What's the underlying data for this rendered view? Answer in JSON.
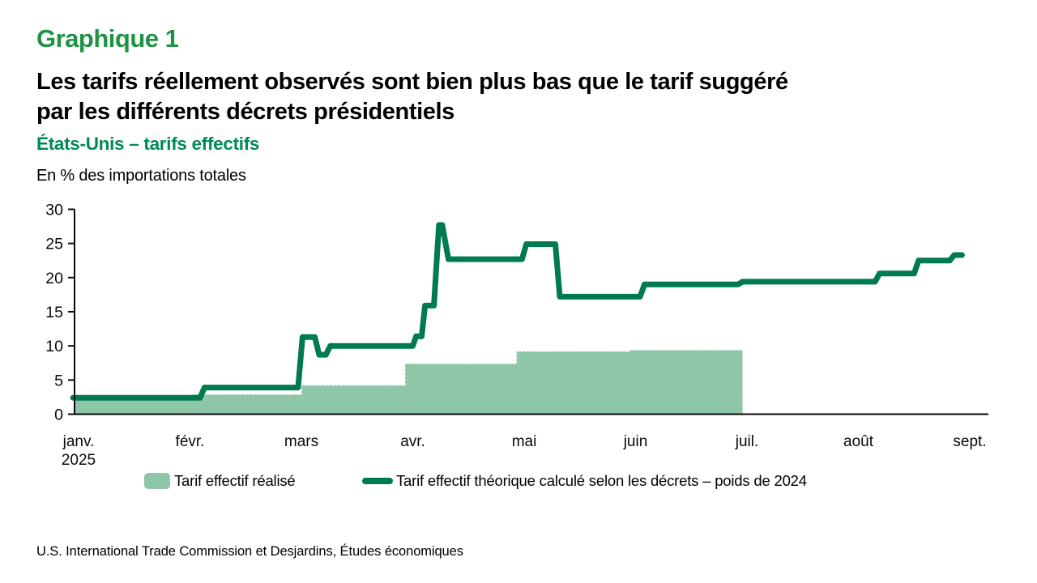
{
  "page": {
    "kicker": "Graphique 1",
    "title_line1": "Les tarifs réellement observés sont bien plus bas que le tarif suggéré",
    "title_line2": "par les différents décrets présidentiels",
    "subtitle": "États-Unis – tarifs effectifs",
    "unit_label": "En % des importations totales",
    "source": "U.S. International Trade Commission et Desjardins, Études économiques"
  },
  "colors": {
    "kicker_green": "#1f9245",
    "subtitle_green": "#008a50",
    "line_green": "#007a4f",
    "area_green": "#8ec6a8",
    "area_edge_dash": "#f2f7f2",
    "axis_black": "#0a0a0a"
  },
  "legend": {
    "items": [
      {
        "type": "area",
        "label": "Tarif effectif réalisé"
      },
      {
        "type": "line",
        "label": "Tarif effectif théorique calculé selon les décrets – poids de 2024"
      }
    ]
  },
  "chart_data": {
    "type": "area",
    "subtype": "step area + step line, x in months (0 = janv. 2025, 8 = sept. 2025)",
    "title": "États-Unis – tarifs effectifs",
    "ylabel": "En % des importations totales",
    "ylim": [
      0,
      30
    ],
    "yticks": [
      0,
      5,
      10,
      15,
      20,
      25,
      30
    ],
    "x_tick_labels": [
      "janv.",
      "févr.",
      "mars",
      "avr.",
      "mai",
      "juin",
      "juil.",
      "août",
      "sept."
    ],
    "x_first_tick_second_line": "2025",
    "grid": "off",
    "legend_position": "bottom",
    "series": [
      {
        "name": "Tarif effectif réalisé",
        "type": "area",
        "categories": [
          "janv.",
          "févr.",
          "mars",
          "avr.",
          "mai",
          "juin"
        ],
        "values": [
          2.2,
          2.9,
          4.25,
          7.4,
          9.2,
          9.4
        ],
        "step_boundaries_m": [
          -0.036,
          1.02,
          2.0,
          2.93,
          3.93,
          4.95,
          5.96
        ]
      },
      {
        "name": "Tarif effectif théorique calculé selon les décrets – poids de 2024",
        "type": "line",
        "points_m_v": [
          [
            -0.05,
            2.4
          ],
          [
            1.09,
            2.4
          ],
          [
            1.13,
            3.9
          ],
          [
            1.97,
            3.9
          ],
          [
            2.01,
            11.3
          ],
          [
            2.12,
            11.3
          ],
          [
            2.16,
            8.7
          ],
          [
            2.22,
            8.7
          ],
          [
            2.26,
            10.0
          ],
          [
            3.0,
            10.0
          ],
          [
            3.03,
            11.4
          ],
          [
            3.08,
            11.4
          ],
          [
            3.11,
            15.9
          ],
          [
            3.19,
            15.9
          ],
          [
            3.235,
            27.7
          ],
          [
            3.265,
            27.7
          ],
          [
            3.32,
            22.7
          ],
          [
            3.98,
            22.7
          ],
          [
            4.02,
            24.9
          ],
          [
            4.28,
            24.9
          ],
          [
            4.32,
            17.2
          ],
          [
            5.04,
            17.2
          ],
          [
            5.08,
            19.0
          ],
          [
            5.92,
            19.0
          ],
          [
            5.96,
            19.4
          ],
          [
            7.15,
            19.4
          ],
          [
            7.19,
            20.6
          ],
          [
            7.5,
            20.6
          ],
          [
            7.54,
            22.5
          ],
          [
            7.82,
            22.5
          ],
          [
            7.86,
            23.3
          ],
          [
            7.93,
            23.3
          ]
        ]
      }
    ]
  }
}
